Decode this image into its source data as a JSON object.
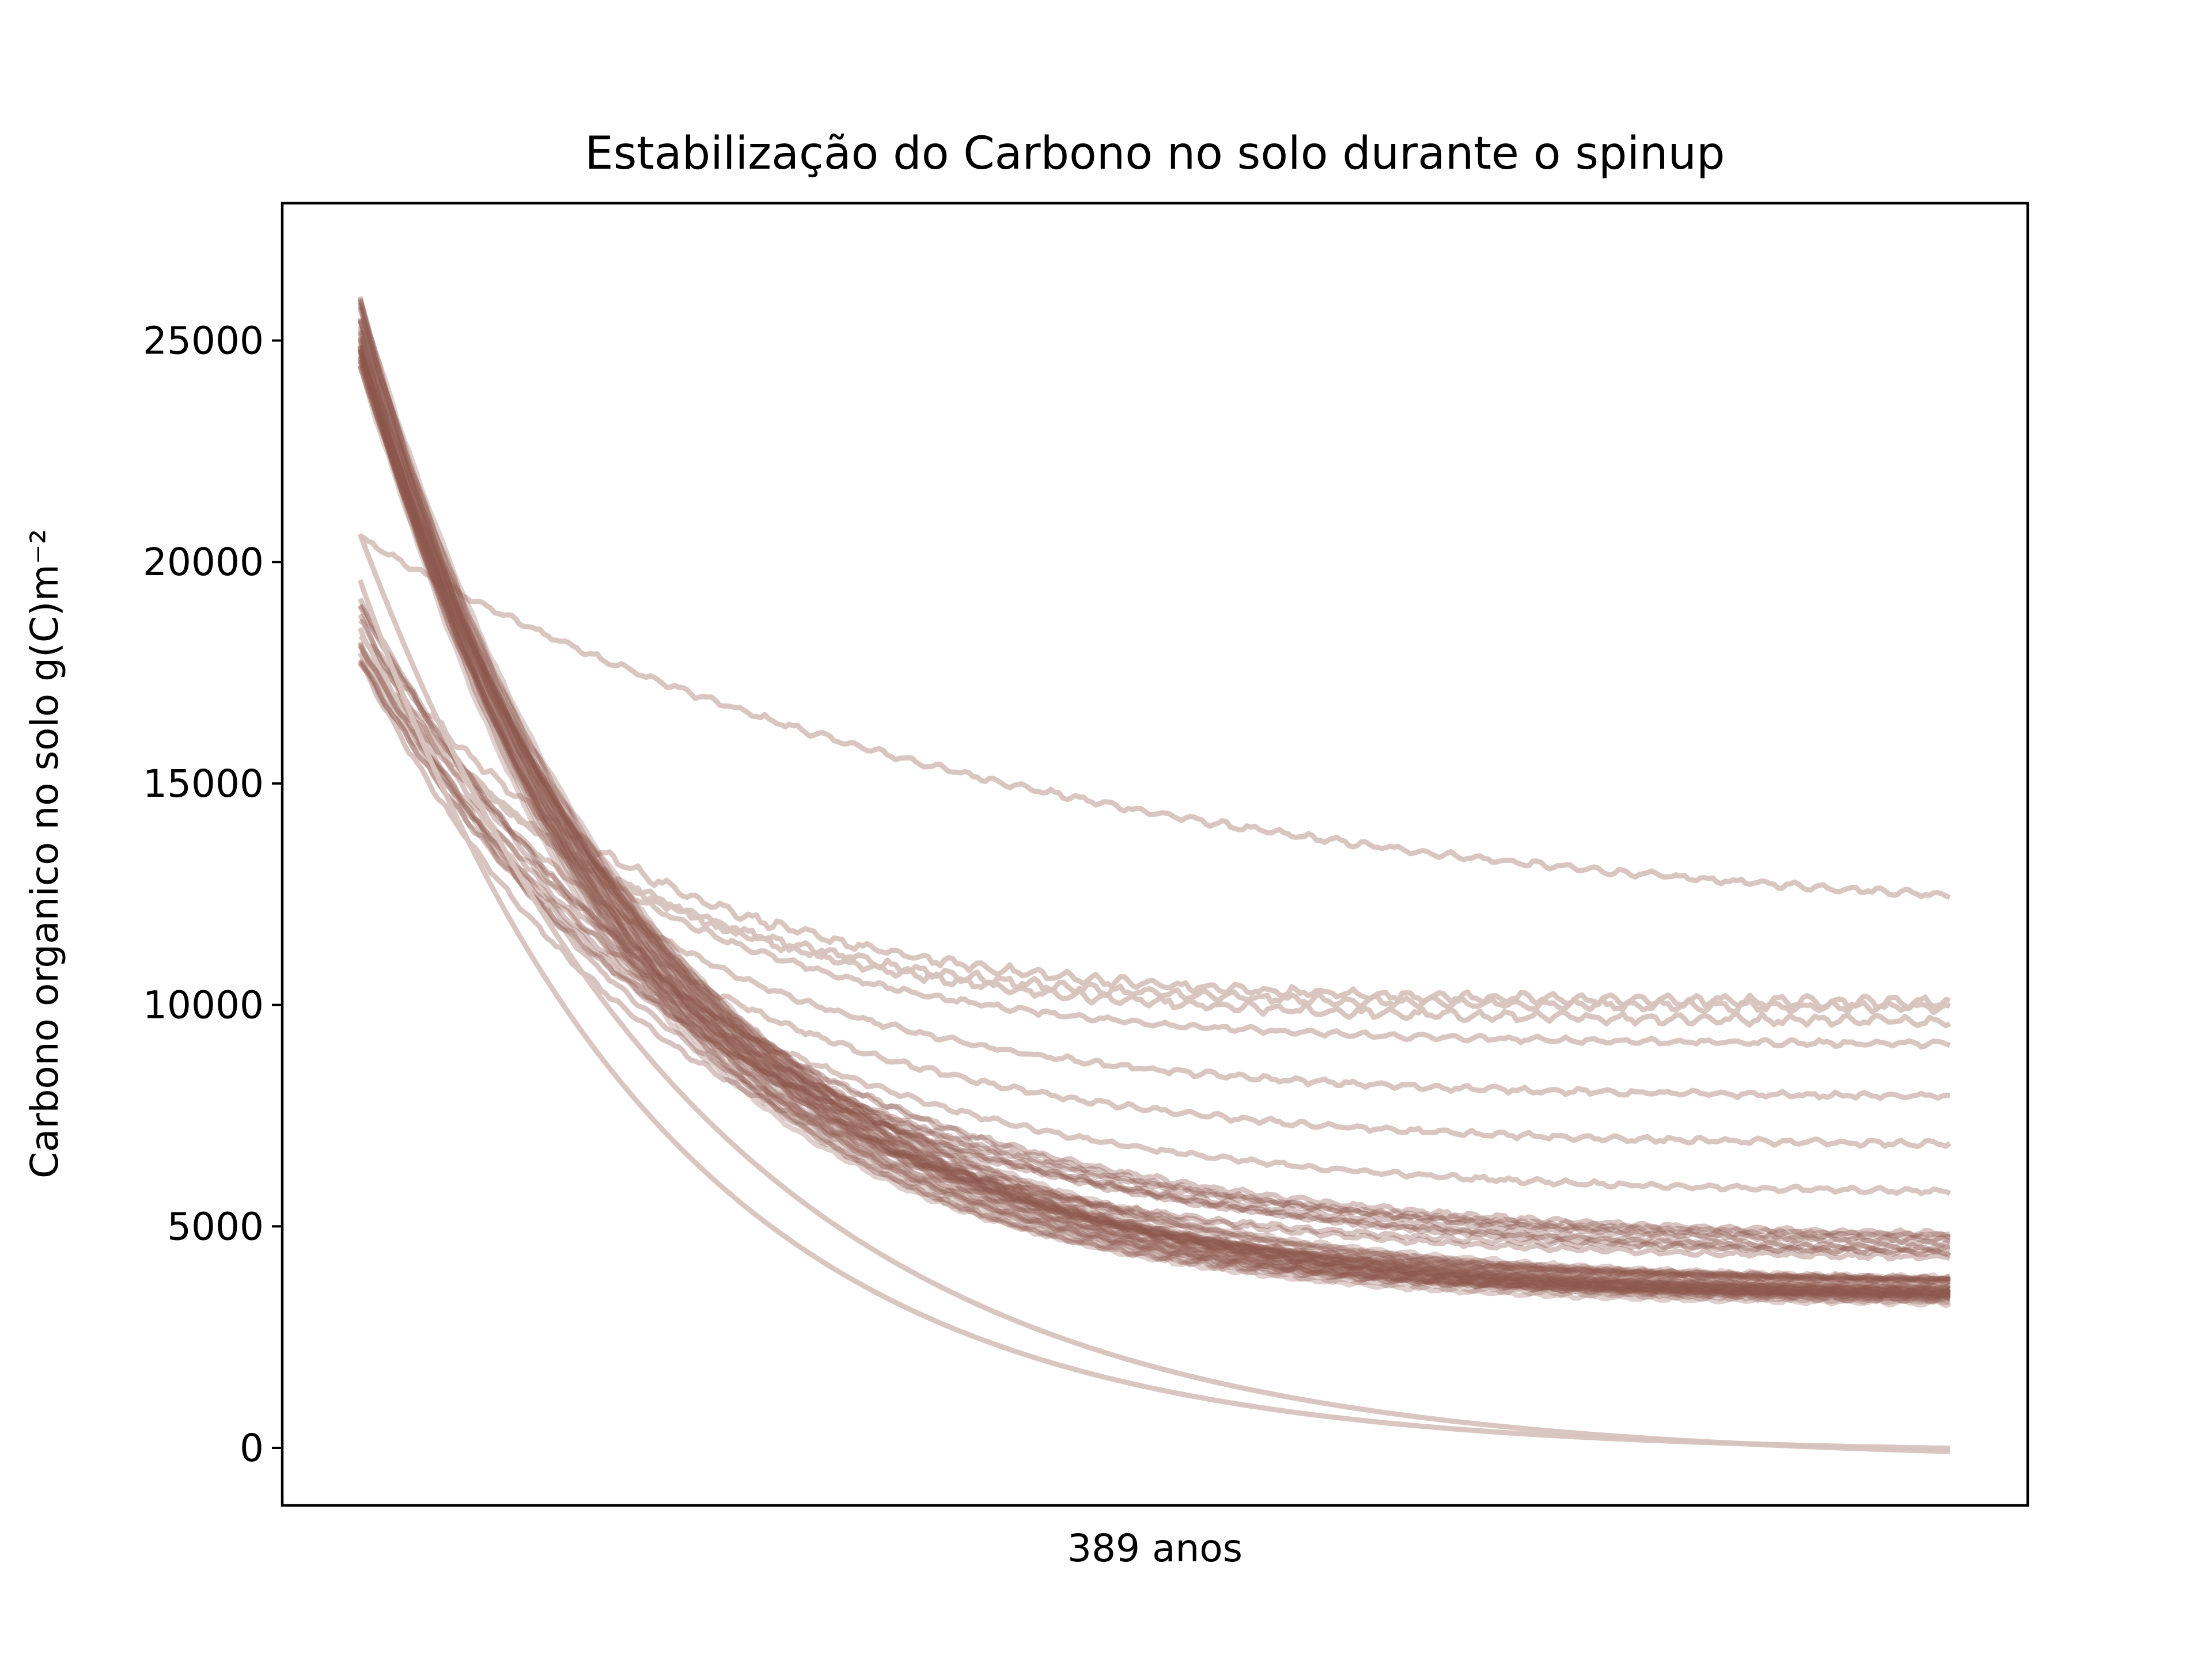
{
  "chart_data": {
    "type": "line",
    "title": "Estabilização do Carbono no solo durante o spinup",
    "xlabel": "389 anos",
    "ylabel": "Carbono organico no solo g(C)m⁻²",
    "x": {
      "start": 0,
      "end": 389,
      "ticks_shown": false
    },
    "ylim": [
      -1300,
      28100
    ],
    "yticks": [
      0,
      5000,
      10000,
      15000,
      20000,
      25000
    ],
    "ytick_labels": [
      "0",
      "5000",
      "10000",
      "15000",
      "20000",
      "25000"
    ],
    "grid": false,
    "legend": false,
    "series_style": {
      "color": "#8b574d",
      "light_color": "#d7c3bd"
    },
    "series_groups": [
      {
        "name": "",
        "count": 1,
        "start": 20500,
        "end": 11700,
        "tau": 160,
        "noise": 90,
        "opacity": 0.45
      },
      {
        "name": "",
        "count": 3,
        "start": 18600,
        "end": 9900,
        "tau": 60,
        "noise": 140,
        "opacity": 0.45
      },
      {
        "name": "",
        "count": 1,
        "start": 18400,
        "end": 9100,
        "tau": 65,
        "noise": 80,
        "opacity": 0.45
      },
      {
        "name": "",
        "count": 1,
        "start": 18200,
        "end": 7900,
        "tau": 70,
        "noise": 80,
        "opacity": 0.45
      },
      {
        "name": "",
        "count": 1,
        "start": 18000,
        "end": 6800,
        "tau": 75,
        "noise": 80,
        "opacity": 0.45
      },
      {
        "name": "",
        "count": 1,
        "start": 17800,
        "end": 5700,
        "tau": 80,
        "noise": 70,
        "opacity": 0.45
      },
      {
        "name": "",
        "count": 10,
        "start": 18500,
        "end": 4500,
        "tau": 80,
        "noise": 70,
        "opacity": 0.35
      },
      {
        "name": "",
        "count": 40,
        "start": 25200,
        "end": 3500,
        "tau": 68,
        "noise": 60,
        "opacity": 0.28
      },
      {
        "name": "",
        "count": 2,
        "start": 20300,
        "end": 0,
        "tau": 80,
        "noise": 0,
        "opacity": 0.45
      }
    ]
  }
}
